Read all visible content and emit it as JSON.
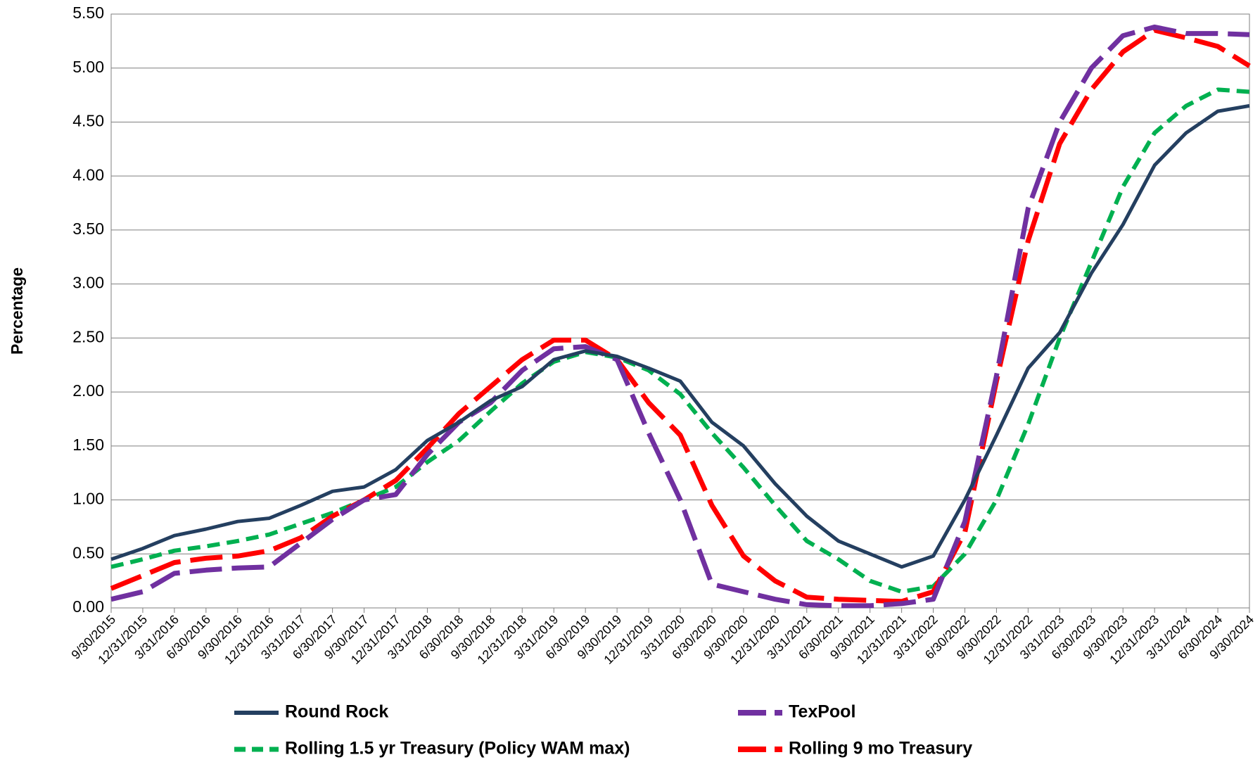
{
  "chart_data": {
    "type": "line",
    "y_label": "Percentage",
    "categories": [
      "9/30/2015",
      "12/31/2015",
      "3/31/2016",
      "6/30/2016",
      "9/30/2016",
      "12/31/2016",
      "3/31/2017",
      "6/30/2017",
      "9/30/2017",
      "12/31/2017",
      "3/31/2018",
      "6/30/2018",
      "9/30/2018",
      "12/31/2018",
      "3/31/2019",
      "6/30/2019",
      "9/30/2019",
      "12/31/2019",
      "3/31/2020",
      "6/30/2020",
      "9/30/2020",
      "12/31/2020",
      "3/31/2021",
      "6/30/2021",
      "9/30/2021",
      "12/31/2021",
      "3/31/2022",
      "6/30/2022",
      "9/30/2022",
      "12/31/2022",
      "3/31/2023",
      "6/30/2023",
      "9/30/2023",
      "12/31/2023",
      "3/31/2024",
      "6/30/2024",
      "9/30/2024"
    ],
    "series": [
      {
        "name": "Round Rock",
        "color": "#243f60",
        "style": "solid",
        "values": [
          0.45,
          0.55,
          0.67,
          0.73,
          0.8,
          0.83,
          0.95,
          1.08,
          1.12,
          1.28,
          1.55,
          1.72,
          1.92,
          2.05,
          2.3,
          2.38,
          2.33,
          2.22,
          2.1,
          1.72,
          1.5,
          1.15,
          0.85,
          0.62,
          0.5,
          0.38,
          0.48,
          1.0,
          1.6,
          2.22,
          2.55,
          3.1,
          3.55,
          4.1,
          4.4,
          4.6,
          4.65
        ]
      },
      {
        "name": "TexPool",
        "color": "#7030a0",
        "style": "long-dash",
        "values": [
          0.08,
          0.15,
          0.32,
          0.35,
          0.37,
          0.38,
          0.6,
          0.82,
          1.0,
          1.05,
          1.42,
          1.72,
          1.9,
          2.2,
          2.4,
          2.42,
          2.3,
          1.62,
          1.0,
          0.22,
          0.15,
          0.08,
          0.03,
          0.02,
          0.02,
          0.04,
          0.08,
          0.8,
          2.15,
          3.7,
          4.5,
          5.0,
          5.3,
          5.38,
          5.32,
          5.32,
          5.31
        ]
      },
      {
        "name": "Rolling 1.5 yr Treasury (Policy WAM max)",
        "color": "#00b050",
        "style": "short-dash",
        "values": [
          0.38,
          0.45,
          0.53,
          0.57,
          0.62,
          0.68,
          0.78,
          0.88,
          1.0,
          1.12,
          1.35,
          1.55,
          1.82,
          2.08,
          2.28,
          2.37,
          2.32,
          2.2,
          1.98,
          1.62,
          1.3,
          0.95,
          0.62,
          0.45,
          0.25,
          0.15,
          0.2,
          0.5,
          1.0,
          1.7,
          2.5,
          3.2,
          3.9,
          4.4,
          4.65,
          4.8,
          4.78
        ]
      },
      {
        "name": "Rolling 9 mo Treasury",
        "color": "#ff0000",
        "style": "long-dash",
        "values": [
          0.18,
          0.3,
          0.42,
          0.46,
          0.48,
          0.53,
          0.65,
          0.85,
          1.0,
          1.18,
          1.48,
          1.8,
          2.05,
          2.3,
          2.48,
          2.48,
          2.3,
          1.9,
          1.6,
          0.95,
          0.48,
          0.25,
          0.1,
          0.08,
          0.07,
          0.06,
          0.15,
          0.7,
          2.1,
          3.4,
          4.3,
          4.8,
          5.15,
          5.35,
          5.28,
          5.2,
          5.02
        ]
      }
    ],
    "ylim": [
      0,
      5.5
    ],
    "yticks": [
      {
        "value": 0,
        "label": "0.00"
      },
      {
        "value": 0.5,
        "label": "0.50"
      },
      {
        "value": 1,
        "label": "1.00"
      },
      {
        "value": 1.5,
        "label": "1.50"
      },
      {
        "value": 2,
        "label": "2.00"
      },
      {
        "value": 2.5,
        "label": "2.50"
      },
      {
        "value": 3,
        "label": "3.00"
      },
      {
        "value": 3.5,
        "label": "3.50"
      },
      {
        "value": 4,
        "label": "4.00"
      },
      {
        "value": 4.5,
        "label": "4.50"
      },
      {
        "value": 5,
        "label": "5.00"
      },
      {
        "value": 5.5,
        "label": "5.50"
      }
    ],
    "grid": true,
    "legend": "bottom"
  }
}
